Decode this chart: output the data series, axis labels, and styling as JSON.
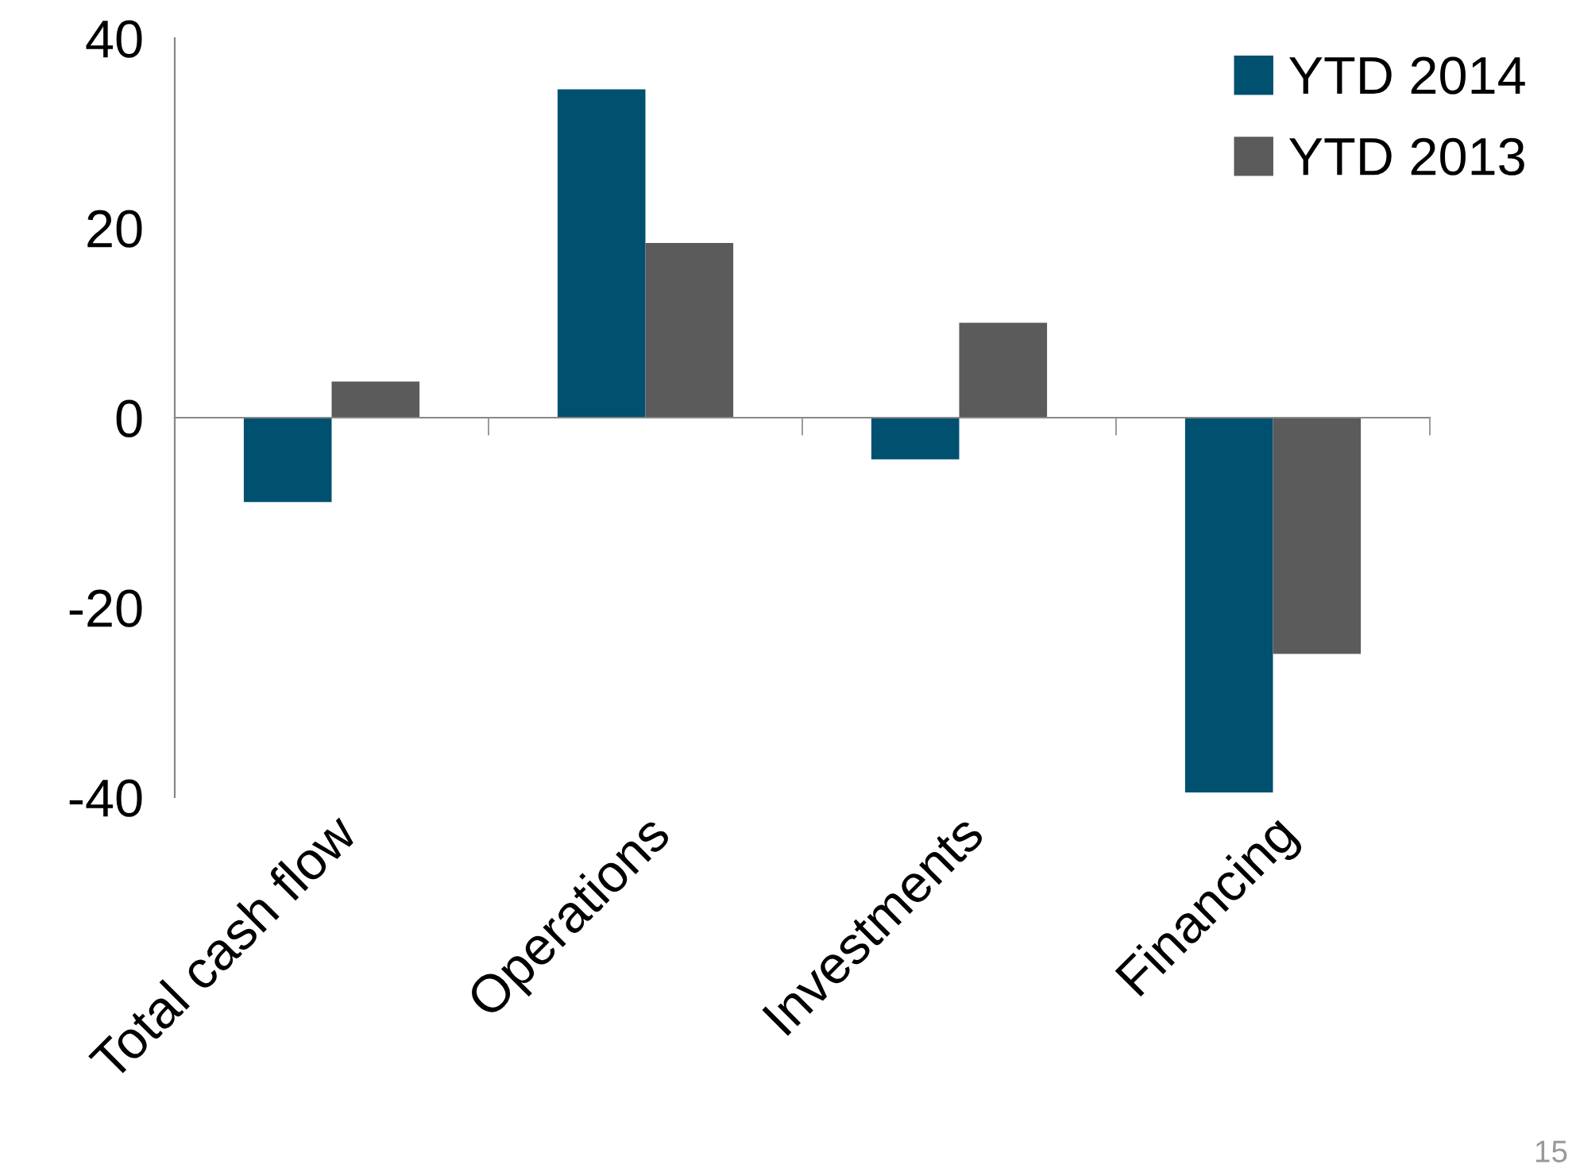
{
  "chart_data": {
    "type": "bar",
    "categories": [
      "Total cash flow",
      "Operations",
      "Investments",
      "Financing"
    ],
    "series": [
      {
        "name": "YTD 2014",
        "color": "#00506f",
        "values": [
          -8.9,
          34.6,
          -4.4,
          -39.5
        ]
      },
      {
        "name": "YTD 2013",
        "color": "#5b5b5b",
        "values": [
          3.8,
          18.4,
          10.0,
          -24.9
        ]
      }
    ],
    "ylim": [
      -40,
      40
    ],
    "yticks": [
      -40,
      -20,
      0,
      20,
      40
    ],
    "legend": "top right",
    "annotations": [
      "15"
    ]
  }
}
